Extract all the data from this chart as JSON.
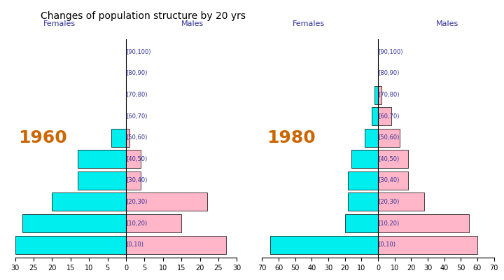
{
  "title": "Changes of population structure by 20 yrs",
  "age_labels": [
    "[90,100)",
    "[80,90)",
    "[70,80)",
    "[60,70)",
    "[50,60)",
    "[40,50)",
    "[30,40)",
    "[20,30)",
    "[10,20)",
    "[0,10)"
  ],
  "chart1": {
    "year": "1960",
    "females_from_bottom": [
      30,
      28,
      20,
      13,
      13,
      4,
      0,
      0,
      0,
      0
    ],
    "males_from_bottom": [
      27,
      15,
      22,
      4,
      4,
      1,
      0,
      0,
      0,
      0
    ],
    "xlim": 30,
    "xticks": [
      0,
      5,
      10,
      15,
      20,
      25,
      30
    ]
  },
  "chart2": {
    "year": "1980",
    "females_from_bottom": [
      65,
      20,
      18,
      18,
      16,
      8,
      4,
      2,
      0,
      0
    ],
    "males_from_bottom": [
      60,
      55,
      28,
      18,
      18,
      13,
      8,
      2,
      0,
      0
    ],
    "xlim": 70,
    "xticks": [
      0,
      10,
      20,
      30,
      40,
      50,
      60,
      70
    ]
  },
  "female_color": "#00EEEE",
  "male_color": "#FFB6C8",
  "female_edge": "#000000",
  "male_edge": "#000000",
  "title_fontsize": 10,
  "label_fontsize": 8,
  "year_fontsize": 18,
  "year_color": "#CC6600",
  "bar_height": 0.85,
  "age_label_color": "#333399",
  "header_color": "#333399"
}
